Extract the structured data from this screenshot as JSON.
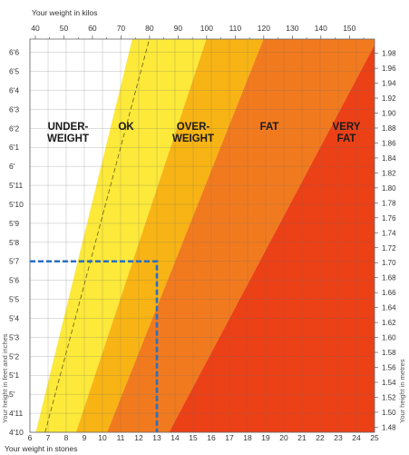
{
  "chart_data": {
    "type": "area",
    "title": "",
    "top_axis": {
      "label": "Your weight in kilos",
      "ticks": [
        "40",
        "50",
        "60",
        "70",
        "80",
        "90",
        "100",
        "110",
        "120",
        "130",
        "140",
        "150"
      ],
      "range": [
        38.1,
        158.8
      ]
    },
    "bottom_axis": {
      "label": "Your weight in stones",
      "ticks": [
        "6",
        "7",
        "8",
        "9",
        "10",
        "11",
        "12",
        "13",
        "14",
        "15",
        "16",
        "17",
        "18",
        "19",
        "20",
        "21",
        "22",
        "23",
        "24",
        "25"
      ],
      "range": [
        6,
        25
      ]
    },
    "left_axis": {
      "label": "Your height in feet and inches",
      "ticks": [
        "4'10",
        "4'11",
        "5'",
        "5'1",
        "5'2",
        "5'3",
        "5'4",
        "5'5",
        "5'6",
        "5'7",
        "5'8",
        "5'9",
        "5'10",
        "5'11",
        "6'",
        "6'1",
        "6'2",
        "6'3",
        "6'4",
        "6'5",
        "6'6"
      ],
      "range_inches": [
        58,
        78.7
      ]
    },
    "right_axis": {
      "label": "Your height in metres",
      "ticks": [
        "1.48",
        "1.50",
        "1.52",
        "1.54",
        "1.56",
        "1.58",
        "1.60",
        "1.62",
        "1.64",
        "1.66",
        "1.68",
        "1.70",
        "1.72",
        "1.74",
        "1.76",
        "1.78",
        "1.80",
        "1.82",
        "1.84",
        "1.86",
        "1.88",
        "1.90",
        "1.92",
        "1.94",
        "1.96",
        "1.98"
      ]
    },
    "zones": [
      {
        "name": "UNDER-\nWEIGHT",
        "color": "#ffffff",
        "boundary_bmi_upper": 18.5
      },
      {
        "name": "OK",
        "color": "#fce93a",
        "boundary_bmi_upper": 25
      },
      {
        "name": "OVER-\nWEIGHT",
        "color": "#f8b414",
        "boundary_bmi_upper": 30
      },
      {
        "name": "FAT",
        "color": "#f27a1e",
        "boundary_bmi_upper": 40
      },
      {
        "name": "VERY\nFAT",
        "color": "#ec4016",
        "boundary_bmi_upper": null
      }
    ],
    "ok_zone_dashed_bmi": 20,
    "marker": {
      "weight_stones": 13,
      "height": "5'7",
      "color": "#2a6fc0"
    },
    "grid": true
  }
}
